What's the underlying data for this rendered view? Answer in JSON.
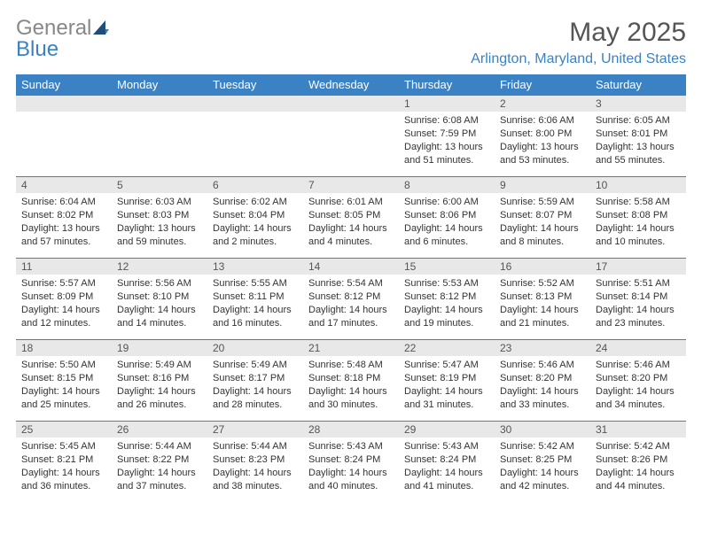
{
  "logo": {
    "general": "General",
    "blue": "Blue"
  },
  "month_title": "May 2025",
  "location": "Arlington, Maryland, United States",
  "colors": {
    "brand_blue": "#3b82c4",
    "header_bg": "#3b82c4",
    "header_text": "#ffffff",
    "daynum_bg": "#e8e8e8",
    "grid_border": "#3b82c4",
    "logo_gray": "#888888",
    "title_gray": "#555555",
    "body_text": "#333333"
  },
  "weekdays": [
    "Sunday",
    "Monday",
    "Tuesday",
    "Wednesday",
    "Thursday",
    "Friday",
    "Saturday"
  ],
  "weeks": [
    [
      {
        "n": "",
        "sr": "",
        "ss": "",
        "dl": ""
      },
      {
        "n": "",
        "sr": "",
        "ss": "",
        "dl": ""
      },
      {
        "n": "",
        "sr": "",
        "ss": "",
        "dl": ""
      },
      {
        "n": "",
        "sr": "",
        "ss": "",
        "dl": ""
      },
      {
        "n": "1",
        "sr": "Sunrise: 6:08 AM",
        "ss": "Sunset: 7:59 PM",
        "dl": "Daylight: 13 hours and 51 minutes."
      },
      {
        "n": "2",
        "sr": "Sunrise: 6:06 AM",
        "ss": "Sunset: 8:00 PM",
        "dl": "Daylight: 13 hours and 53 minutes."
      },
      {
        "n": "3",
        "sr": "Sunrise: 6:05 AM",
        "ss": "Sunset: 8:01 PM",
        "dl": "Daylight: 13 hours and 55 minutes."
      }
    ],
    [
      {
        "n": "4",
        "sr": "Sunrise: 6:04 AM",
        "ss": "Sunset: 8:02 PM",
        "dl": "Daylight: 13 hours and 57 minutes."
      },
      {
        "n": "5",
        "sr": "Sunrise: 6:03 AM",
        "ss": "Sunset: 8:03 PM",
        "dl": "Daylight: 13 hours and 59 minutes."
      },
      {
        "n": "6",
        "sr": "Sunrise: 6:02 AM",
        "ss": "Sunset: 8:04 PM",
        "dl": "Daylight: 14 hours and 2 minutes."
      },
      {
        "n": "7",
        "sr": "Sunrise: 6:01 AM",
        "ss": "Sunset: 8:05 PM",
        "dl": "Daylight: 14 hours and 4 minutes."
      },
      {
        "n": "8",
        "sr": "Sunrise: 6:00 AM",
        "ss": "Sunset: 8:06 PM",
        "dl": "Daylight: 14 hours and 6 minutes."
      },
      {
        "n": "9",
        "sr": "Sunrise: 5:59 AM",
        "ss": "Sunset: 8:07 PM",
        "dl": "Daylight: 14 hours and 8 minutes."
      },
      {
        "n": "10",
        "sr": "Sunrise: 5:58 AM",
        "ss": "Sunset: 8:08 PM",
        "dl": "Daylight: 14 hours and 10 minutes."
      }
    ],
    [
      {
        "n": "11",
        "sr": "Sunrise: 5:57 AM",
        "ss": "Sunset: 8:09 PM",
        "dl": "Daylight: 14 hours and 12 minutes."
      },
      {
        "n": "12",
        "sr": "Sunrise: 5:56 AM",
        "ss": "Sunset: 8:10 PM",
        "dl": "Daylight: 14 hours and 14 minutes."
      },
      {
        "n": "13",
        "sr": "Sunrise: 5:55 AM",
        "ss": "Sunset: 8:11 PM",
        "dl": "Daylight: 14 hours and 16 minutes."
      },
      {
        "n": "14",
        "sr": "Sunrise: 5:54 AM",
        "ss": "Sunset: 8:12 PM",
        "dl": "Daylight: 14 hours and 17 minutes."
      },
      {
        "n": "15",
        "sr": "Sunrise: 5:53 AM",
        "ss": "Sunset: 8:12 PM",
        "dl": "Daylight: 14 hours and 19 minutes."
      },
      {
        "n": "16",
        "sr": "Sunrise: 5:52 AM",
        "ss": "Sunset: 8:13 PM",
        "dl": "Daylight: 14 hours and 21 minutes."
      },
      {
        "n": "17",
        "sr": "Sunrise: 5:51 AM",
        "ss": "Sunset: 8:14 PM",
        "dl": "Daylight: 14 hours and 23 minutes."
      }
    ],
    [
      {
        "n": "18",
        "sr": "Sunrise: 5:50 AM",
        "ss": "Sunset: 8:15 PM",
        "dl": "Daylight: 14 hours and 25 minutes."
      },
      {
        "n": "19",
        "sr": "Sunrise: 5:49 AM",
        "ss": "Sunset: 8:16 PM",
        "dl": "Daylight: 14 hours and 26 minutes."
      },
      {
        "n": "20",
        "sr": "Sunrise: 5:49 AM",
        "ss": "Sunset: 8:17 PM",
        "dl": "Daylight: 14 hours and 28 minutes."
      },
      {
        "n": "21",
        "sr": "Sunrise: 5:48 AM",
        "ss": "Sunset: 8:18 PM",
        "dl": "Daylight: 14 hours and 30 minutes."
      },
      {
        "n": "22",
        "sr": "Sunrise: 5:47 AM",
        "ss": "Sunset: 8:19 PM",
        "dl": "Daylight: 14 hours and 31 minutes."
      },
      {
        "n": "23",
        "sr": "Sunrise: 5:46 AM",
        "ss": "Sunset: 8:20 PM",
        "dl": "Daylight: 14 hours and 33 minutes."
      },
      {
        "n": "24",
        "sr": "Sunrise: 5:46 AM",
        "ss": "Sunset: 8:20 PM",
        "dl": "Daylight: 14 hours and 34 minutes."
      }
    ],
    [
      {
        "n": "25",
        "sr": "Sunrise: 5:45 AM",
        "ss": "Sunset: 8:21 PM",
        "dl": "Daylight: 14 hours and 36 minutes."
      },
      {
        "n": "26",
        "sr": "Sunrise: 5:44 AM",
        "ss": "Sunset: 8:22 PM",
        "dl": "Daylight: 14 hours and 37 minutes."
      },
      {
        "n": "27",
        "sr": "Sunrise: 5:44 AM",
        "ss": "Sunset: 8:23 PM",
        "dl": "Daylight: 14 hours and 38 minutes."
      },
      {
        "n": "28",
        "sr": "Sunrise: 5:43 AM",
        "ss": "Sunset: 8:24 PM",
        "dl": "Daylight: 14 hours and 40 minutes."
      },
      {
        "n": "29",
        "sr": "Sunrise: 5:43 AM",
        "ss": "Sunset: 8:24 PM",
        "dl": "Daylight: 14 hours and 41 minutes."
      },
      {
        "n": "30",
        "sr": "Sunrise: 5:42 AM",
        "ss": "Sunset: 8:25 PM",
        "dl": "Daylight: 14 hours and 42 minutes."
      },
      {
        "n": "31",
        "sr": "Sunrise: 5:42 AM",
        "ss": "Sunset: 8:26 PM",
        "dl": "Daylight: 14 hours and 44 minutes."
      }
    ]
  ]
}
